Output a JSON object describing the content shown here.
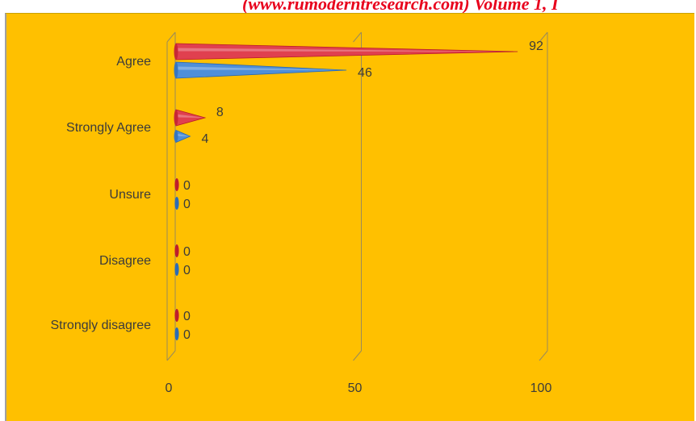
{
  "header": {
    "text": "(www.rumoderntresearch.com) Volume 1, I"
  },
  "colors": {
    "background": "#ffc000",
    "series_red": "#e0404f",
    "series_blue": "#4f8fd8",
    "header_text": "#e8001c"
  },
  "chart_data": {
    "type": "bar",
    "orientation": "horizontal",
    "style": "3d-cone",
    "categories": [
      "Agree",
      "Strongly Agree",
      "Unsure",
      "Disagree",
      "Strongly disagree"
    ],
    "series": [
      {
        "values": [
          92,
          8,
          0,
          0,
          0
        ],
        "color": "#e0404f"
      },
      {
        "values": [
          46,
          4,
          0,
          0,
          0
        ],
        "color": "#4f8fd8"
      }
    ],
    "title": "",
    "xlabel": "",
    "ylabel": "",
    "xlim": [
      0,
      100
    ],
    "x_ticks": [
      0,
      50,
      100
    ],
    "grid": true,
    "legend": "none"
  }
}
